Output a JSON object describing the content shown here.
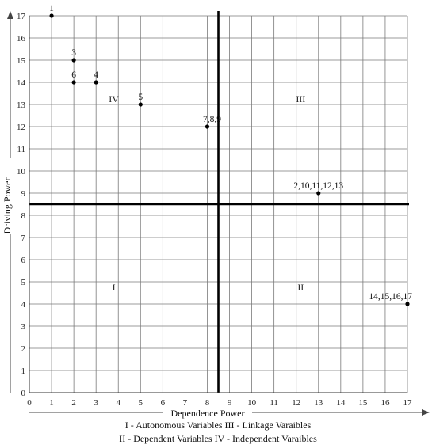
{
  "chart_data": {
    "type": "scatter",
    "xlabel": "Dependence Power",
    "ylabel": "Driving Power",
    "xlim": [
      0,
      17
    ],
    "ylim": [
      0,
      17
    ],
    "x_ticks": [
      0,
      1,
      2,
      3,
      4,
      5,
      6,
      7,
      8,
      9,
      10,
      11,
      12,
      13,
      14,
      15,
      16,
      17
    ],
    "y_ticks": [
      0,
      1,
      2,
      3,
      4,
      5,
      6,
      7,
      8,
      9,
      10,
      11,
      12,
      13,
      14,
      15,
      16,
      17
    ],
    "grid": true,
    "divider_x": 8.5,
    "divider_y": 8.5,
    "points": [
      {
        "label": "1",
        "x": 1,
        "y": 17
      },
      {
        "label": "3",
        "x": 2,
        "y": 15
      },
      {
        "label": "6",
        "x": 2,
        "y": 14
      },
      {
        "label": "4",
        "x": 3,
        "y": 14
      },
      {
        "label": "5",
        "x": 5,
        "y": 13
      },
      {
        "label": "7,8,9",
        "x": 8,
        "y": 12
      },
      {
        "label": "2,10,11,12,13",
        "x": 13,
        "y": 9
      },
      {
        "label": "14,15,16,17",
        "x": 17,
        "y": 4
      }
    ],
    "quadrants": [
      {
        "label": "IV",
        "x": 3.8,
        "y": 13.1
      },
      {
        "label": "III",
        "x": 12.2,
        "y": 13.1
      },
      {
        "label": "I",
        "x": 3.8,
        "y": 4.6
      },
      {
        "label": "II",
        "x": 12.2,
        "y": 4.6
      }
    ],
    "legend_lines": [
      "I - Autonomous Variables III - Linkage Varaibles",
      "II - Dependent Variables IV - Independent Varaibles"
    ]
  }
}
